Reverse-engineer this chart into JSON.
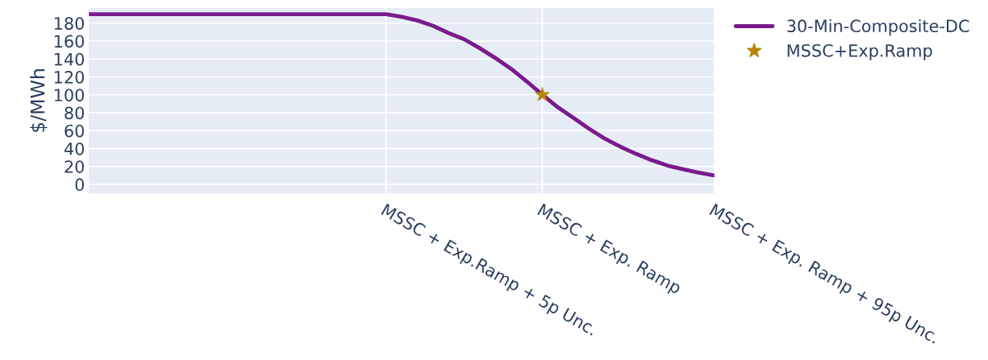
{
  "chart_data": {
    "type": "line",
    "ylabel": "$/MWh",
    "categories": [
      null,
      null,
      null,
      null,
      null,
      null,
      null,
      null,
      null,
      null,
      null,
      null,
      null,
      null,
      null,
      null,
      null,
      null,
      null,
      "MSSC + Exp.Ramp + 5p Unc.",
      null,
      null,
      null,
      null,
      null,
      null,
      null,
      null,
      null,
      "MSSC + Exp. Ramp",
      null,
      null,
      null,
      null,
      null,
      null,
      null,
      null,
      null,
      null,
      "MSSC + Exp. Ramp + 95p Unc."
    ],
    "ylim": [
      -10,
      197
    ],
    "yticks": [
      0,
      20,
      40,
      60,
      80,
      100,
      120,
      140,
      160,
      180
    ],
    "grid": true,
    "legend": "top right",
    "series": [
      {
        "name": "30-Min-Composite-DC",
        "color": "#7a1a8c",
        "values": [
          190,
          190,
          190,
          190,
          190,
          190,
          190,
          190,
          190,
          190,
          190,
          190,
          190,
          190,
          190,
          190,
          190,
          190,
          190,
          190,
          187,
          183,
          177,
          169,
          162,
          152,
          141,
          129,
          115,
          100,
          86,
          74,
          62,
          51,
          42,
          34,
          27,
          21,
          17,
          13,
          10
        ]
      },
      {
        "name": "MSSC+Exp.Ramp",
        "type": "scatter",
        "marker": "star",
        "color": "#b8860b",
        "values": [
          null,
          null,
          null,
          null,
          null,
          null,
          null,
          null,
          null,
          null,
          null,
          null,
          null,
          null,
          null,
          null,
          null,
          null,
          null,
          null,
          null,
          null,
          null,
          null,
          null,
          null,
          null,
          null,
          null,
          100,
          null,
          null,
          null,
          null,
          null,
          null,
          null,
          null,
          null,
          null,
          null
        ]
      }
    ]
  }
}
